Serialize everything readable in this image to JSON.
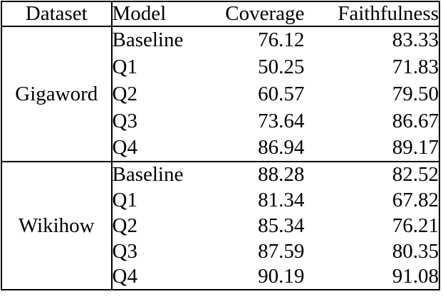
{
  "chart_data": {
    "type": "table",
    "headers": [
      "Dataset",
      "Model",
      "Coverage",
      "Faithfulness"
    ],
    "sections": [
      {
        "dataset": "Gigaword",
        "rows": [
          {
            "model": "Baseline",
            "coverage": "76.12",
            "faithfulness": "83.33"
          },
          {
            "model": "Q1",
            "coverage": "50.25",
            "faithfulness": "71.83"
          },
          {
            "model": "Q2",
            "coverage": "60.57",
            "faithfulness": "79.50"
          },
          {
            "model": "Q3",
            "coverage": "73.64",
            "faithfulness": "86.67"
          },
          {
            "model": "Q4",
            "coverage": "86.94",
            "faithfulness": "89.17"
          }
        ]
      },
      {
        "dataset": "Wikihow",
        "rows": [
          {
            "model": "Baseline",
            "coverage": "88.28",
            "faithfulness": "82.52"
          },
          {
            "model": "Q1",
            "coverage": "81.34",
            "faithfulness": "67.82"
          },
          {
            "model": "Q2",
            "coverage": "85.34",
            "faithfulness": "76.21"
          },
          {
            "model": "Q3",
            "coverage": "87.59",
            "faithfulness": "80.35"
          },
          {
            "model": "Q4",
            "coverage": "90.19",
            "faithfulness": "91.08"
          }
        ]
      }
    ],
    "colors": {
      "border": "#000000",
      "text": "#000000",
      "background": "#ffffff"
    }
  }
}
